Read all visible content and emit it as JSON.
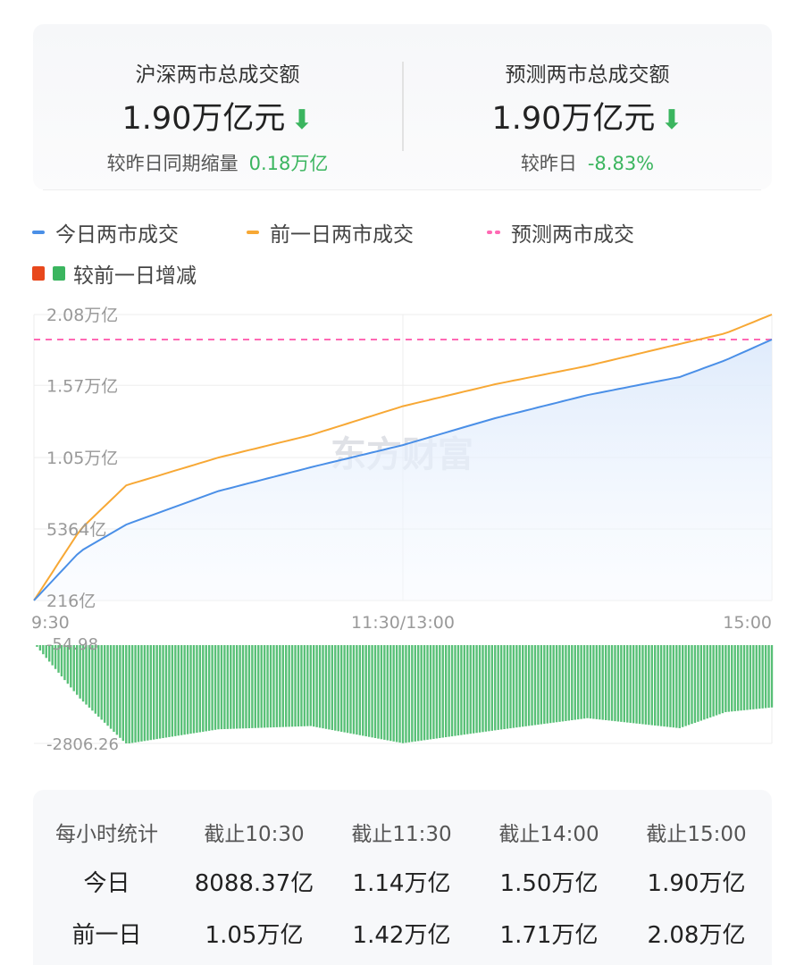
{
  "summary": {
    "left": {
      "title": "沪深两市总成交额",
      "value": "1.90万亿元",
      "trend_icon": "arrow-down",
      "sub_label": "较昨日同期缩量",
      "sub_value": "0.18万亿"
    },
    "right": {
      "title": "预测两市总成交额",
      "value": "1.90万亿元",
      "trend_icon": "arrow-down",
      "sub_label": "较昨日",
      "sub_value": "-8.83%"
    }
  },
  "colors": {
    "today": "#4a8fe7",
    "yesterday": "#f7a835",
    "forecast": "#ff69b4",
    "increase": "#e8481c",
    "decrease": "#3bb55f",
    "down_text": "#3bb55f"
  },
  "watermark": "东方财富",
  "chart_data": [
    {
      "type": "line",
      "legend": [
        {
          "name": "今日两市成交",
          "style": "solid",
          "color": "#4a8fe7"
        },
        {
          "name": "前一日两市成交",
          "style": "solid",
          "color": "#f7a835"
        },
        {
          "name": "预测两市成交",
          "style": "dashed",
          "color": "#ff69b4"
        }
      ],
      "legend_placement": "top-left",
      "x_unit": "minutes of trading session",
      "x": [
        0,
        15,
        30,
        60,
        90,
        120,
        150,
        180,
        210,
        225,
        240
      ],
      "x_ticks": [
        "9:30",
        "11:30/13:00",
        "15:00"
      ],
      "y_ticks": [
        "216亿",
        "5364亿",
        "1.05万亿",
        "1.57万亿",
        "2.08万亿"
      ],
      "y_tick_values": [
        216,
        5364,
        10500,
        15700,
        20800
      ],
      "ylim": [
        216,
        20800
      ],
      "y_unit": "亿",
      "grid": true,
      "series": [
        {
          "name": "今日两市成交",
          "values": [
            216,
            3750,
            5680,
            8088,
            9800,
            11400,
            13340,
            15000,
            16300,
            17520,
            19000
          ],
          "fill": true
        },
        {
          "name": "前一日两市成交",
          "values": [
            216,
            5300,
            8500,
            10500,
            12120,
            14200,
            15780,
            17100,
            18680,
            19450,
            20800
          ]
        }
      ],
      "forecast": {
        "name": "预测两市成交",
        "value": 19000
      }
    },
    {
      "type": "bar",
      "legend": [
        {
          "name": "较前一日增减",
          "colors": [
            "#e8481c",
            "#3bb55f"
          ]
        }
      ],
      "y_ticks": [
        "-54.98",
        "-2806.26"
      ],
      "ylim": [
        -2806.26,
        -54.98
      ],
      "note_values": "today minus previous day, 亿"
    }
  ],
  "table": {
    "headers": [
      "每小时统计",
      "截止10:30",
      "截止11:30",
      "截止14:00",
      "截止15:00"
    ],
    "rows": [
      {
        "label": "今日",
        "values": [
          "8088.37亿",
          "1.14万亿",
          "1.50万亿",
          "1.90万亿"
        ]
      },
      {
        "label": "前一日",
        "values": [
          "1.05万亿",
          "1.42万亿",
          "1.71万亿",
          "2.08万亿"
        ]
      }
    ]
  }
}
